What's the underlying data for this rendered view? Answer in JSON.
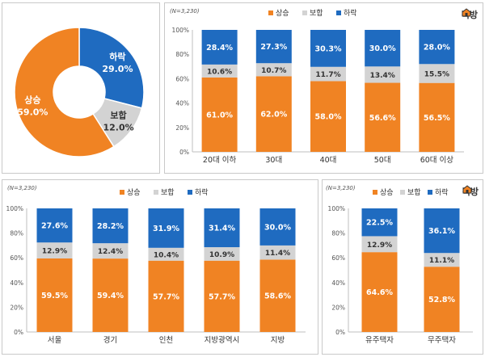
{
  "brand": {
    "name": "직방"
  },
  "colors": {
    "rise": "#F08323",
    "flat": "#D3D3D3",
    "fall": "#1F6BC0",
    "axis": "#bfbfbf"
  },
  "legend": {
    "rise": "상승",
    "flat": "보합",
    "fall": "하락"
  },
  "chart_data": [
    {
      "id": "donut",
      "type": "pie",
      "donut": true,
      "categories": [
        "하락",
        "보합",
        "상승"
      ],
      "values": [
        29.0,
        12.0,
        59.0
      ],
      "labels": [
        "29.0%",
        "12.0%",
        "59.0%"
      ]
    },
    {
      "id": "age",
      "type": "bar",
      "stacked": true,
      "n_label": "(N=3,230)",
      "categories": [
        "20대 이하",
        "30대",
        "40대",
        "50대",
        "60대 이상"
      ],
      "series": [
        {
          "name": "상승",
          "values": [
            61.0,
            62.0,
            58.0,
            56.6,
            56.5
          ]
        },
        {
          "name": "보합",
          "values": [
            10.6,
            10.7,
            11.7,
            13.4,
            15.5
          ]
        },
        {
          "name": "하락",
          "values": [
            28.4,
            27.3,
            30.3,
            30.0,
            28.0
          ]
        }
      ],
      "yticks": [
        "0%",
        "20%",
        "40%",
        "60%",
        "80%",
        "100%"
      ],
      "ylim": [
        0,
        100
      ]
    },
    {
      "id": "region",
      "type": "bar",
      "stacked": true,
      "n_label": "(N=3,230)",
      "categories": [
        "서울",
        "경기",
        "인천",
        "지방광역시",
        "지방"
      ],
      "series": [
        {
          "name": "상승",
          "values": [
            59.5,
            59.4,
            57.7,
            57.7,
            58.6
          ]
        },
        {
          "name": "보합",
          "values": [
            12.9,
            12.4,
            10.4,
            10.9,
            11.4
          ]
        },
        {
          "name": "하락",
          "values": [
            27.6,
            28.2,
            31.9,
            31.4,
            30.0
          ]
        }
      ],
      "yticks": [
        "0%",
        "20%",
        "40%",
        "60%",
        "80%",
        "100%"
      ],
      "ylim": [
        0,
        100
      ]
    },
    {
      "id": "house",
      "type": "bar",
      "stacked": true,
      "n_label": "(N=3,230)",
      "categories": [
        "유주택자",
        "무주택자"
      ],
      "series": [
        {
          "name": "상승",
          "values": [
            64.6,
            52.8
          ]
        },
        {
          "name": "보합",
          "values": [
            12.9,
            11.1
          ]
        },
        {
          "name": "하락",
          "values": [
            22.5,
            36.1
          ]
        }
      ],
      "yticks": [
        "0%",
        "20%",
        "40%",
        "60%",
        "80%",
        "100%"
      ],
      "ylim": [
        0,
        100
      ]
    }
  ]
}
